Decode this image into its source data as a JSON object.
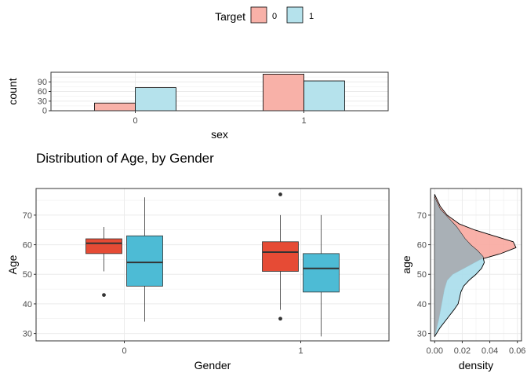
{
  "legend": {
    "title": "Target",
    "position": "top-center",
    "items": [
      {
        "label": "0",
        "color": "#F8766D"
      },
      {
        "label": "1",
        "color": "#00BFC4"
      }
    ]
  },
  "colors": {
    "box_0": "#E64B35",
    "box_1": "#4DBBD5",
    "bar_0": "#F8B1A8",
    "bar_1": "#B5E2EC",
    "density_0": "#F8A9A0",
    "density_1": "#A9DDEB",
    "overlap": "#A9B0B6",
    "grid": "#EBEBEB"
  },
  "chart_data": [
    {
      "id": "sex-count",
      "type": "bar",
      "title": "",
      "xlabel": "sex",
      "ylabel": "count",
      "categories": [
        "0",
        "1"
      ],
      "ylim": [
        0,
        120
      ],
      "yticks": [
        0,
        30,
        60,
        90
      ],
      "grid": true,
      "series": [
        {
          "name": "0",
          "values": [
            24,
            114
          ]
        },
        {
          "name": "1",
          "values": [
            72,
            93
          ]
        }
      ]
    },
    {
      "id": "age-by-gender",
      "type": "box",
      "title": "Distribution of Age, by Gender",
      "xlabel": "Gender",
      "ylabel": "Age",
      "categories": [
        "0",
        "1"
      ],
      "ylim": [
        27.5,
        79
      ],
      "yticks": [
        30,
        40,
        50,
        60,
        70
      ],
      "grid": true,
      "series": [
        {
          "name": "0",
          "boxes": [
            {
              "category": "0",
              "min": 51,
              "q1": 57,
              "median": 60.5,
              "q3": 62,
              "max": 66,
              "outliers": [
                43
              ]
            },
            {
              "category": "1",
              "min": 38,
              "q1": 51,
              "median": 57.5,
              "q3": 61,
              "max": 70,
              "outliers": [
                35,
                77
              ]
            }
          ]
        },
        {
          "name": "1",
          "boxes": [
            {
              "category": "0",
              "min": 34,
              "q1": 46,
              "median": 54,
              "q3": 63,
              "max": 76,
              "outliers": []
            },
            {
              "category": "1",
              "min": 29,
              "q1": 44,
              "median": 52,
              "q3": 57,
              "max": 70,
              "outliers": []
            }
          ]
        }
      ]
    },
    {
      "id": "age-density",
      "type": "area",
      "title": "",
      "xlabel": "density",
      "ylabel": "age",
      "xlim": [
        -0.003,
        0.063
      ],
      "xticks": [
        0.0,
        0.02,
        0.04,
        0.06
      ],
      "xticklabels": [
        "0.00",
        "0.02",
        "0.04",
        "0.06"
      ],
      "ylim": [
        27.5,
        79
      ],
      "yticks": [
        30,
        40,
        50,
        60,
        70
      ],
      "grid": true,
      "series": [
        {
          "name": "0",
          "y": [
            29,
            35,
            40,
            45,
            48,
            50,
            52,
            55,
            57,
            59,
            61,
            63,
            65,
            67,
            70,
            73,
            77
          ],
          "density": [
            0.0,
            0.003,
            0.005,
            0.007,
            0.009,
            0.013,
            0.021,
            0.033,
            0.048,
            0.059,
            0.057,
            0.043,
            0.029,
            0.018,
            0.009,
            0.004,
            0.0
          ]
        },
        {
          "name": "1",
          "y": [
            29,
            32,
            35,
            38,
            40,
            42,
            44,
            46,
            48,
            50,
            52,
            54,
            56,
            58,
            60,
            62,
            64,
            66,
            68,
            70,
            72,
            74,
            76
          ],
          "density": [
            0.0,
            0.004,
            0.009,
            0.014,
            0.017,
            0.018,
            0.019,
            0.021,
            0.025,
            0.03,
            0.034,
            0.036,
            0.035,
            0.031,
            0.026,
            0.022,
            0.019,
            0.016,
            0.012,
            0.008,
            0.004,
            0.002,
            0.0
          ]
        }
      ]
    }
  ]
}
